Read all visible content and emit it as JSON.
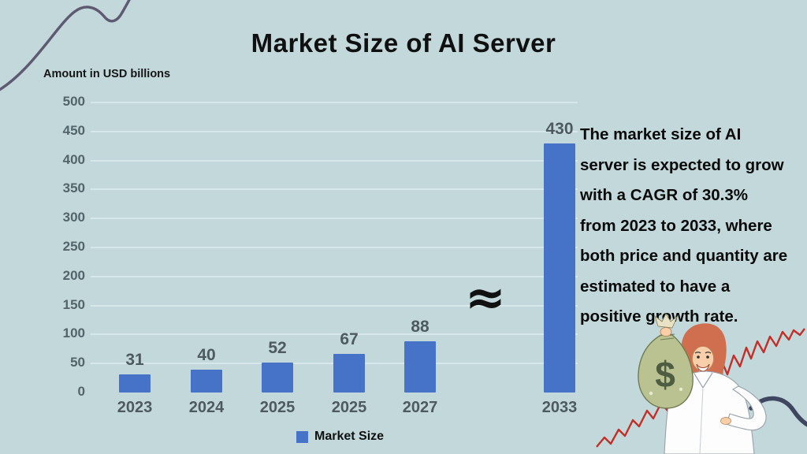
{
  "page": {
    "background_color": "#c2d8da"
  },
  "header": {
    "title": "Market Size of AI Server",
    "axis_note": "Amount in USD billions"
  },
  "chart_data": {
    "type": "bar",
    "title": "Market Size of AI Server",
    "ylabel": "Amount in USD billions",
    "categories": [
      "2023",
      "2024",
      "2025",
      "2025",
      "2027",
      "2033"
    ],
    "series": [
      {
        "name": "Market Size",
        "values": [
          31,
          40,
          52,
          67,
          88,
          430
        ]
      }
    ],
    "ylim": [
      0,
      500
    ],
    "ytick_step": 50,
    "bar_color": "#4673c8",
    "value_labels": true,
    "grid": true,
    "legend_position": "bottom",
    "axis_break": {
      "present": true,
      "symbol": "≈",
      "between": [
        "2027",
        "2033"
      ]
    }
  },
  "legend": {
    "swatch_color": "#4673c8",
    "label": "Market Size"
  },
  "break_symbol": "≈",
  "annotation": {
    "full_text": "The market size of AI server is expected to grow with a CAGR of 30.3% from 2023 to 2033, where both price and quantity are estimated to have a positive growth rate.",
    "lines": [
      "The market size of AI",
      "server is expected to grow",
      "with a CAGR of 30.3%",
      "from 2023 to 2033, where",
      "both price and quantity are",
      "estimated to have a",
      "positive growth rate."
    ]
  },
  "illustration": {
    "description": "Businesswoman holding a money bag in front of a rising stock line",
    "money_bag_symbol": "$",
    "colors": {
      "money_bag": "#b9c290",
      "hair": "#cf6f4f",
      "stock_line": "#c22f28",
      "swoosh": "#3e4660",
      "corner_wave": "#5d5a71"
    }
  }
}
